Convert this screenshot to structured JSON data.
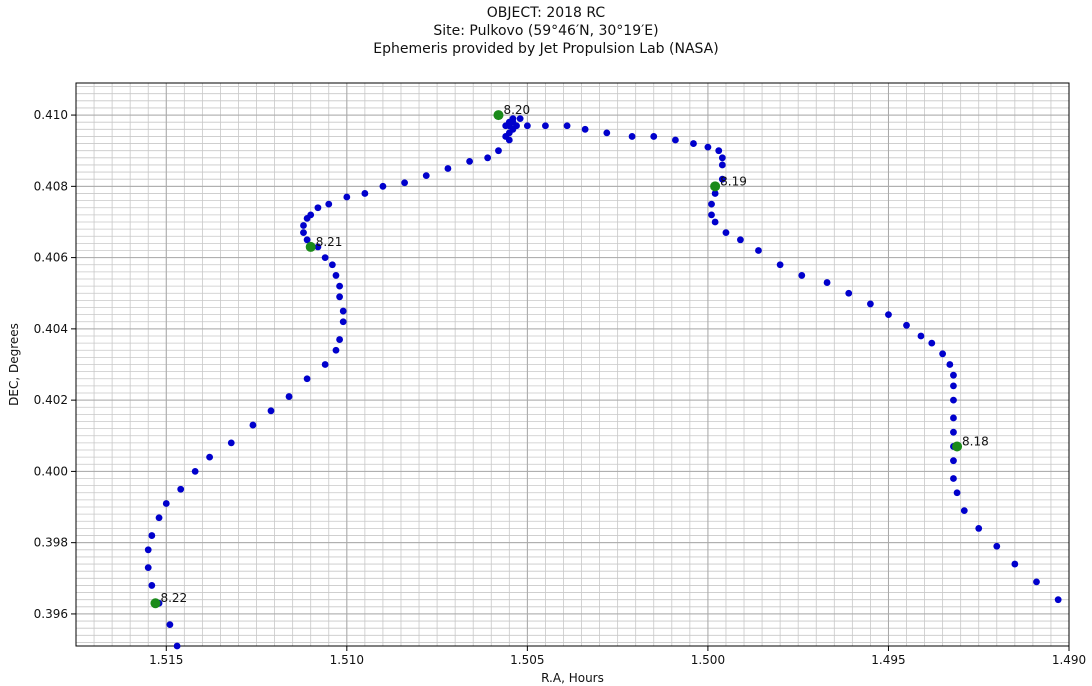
{
  "chart_data": {
    "type": "scatter",
    "title_lines": [
      "OBJECT: 2018 RC",
      "Site: Pulkovo (59°46′N,  30°19′E)",
      "Ephemeris provided by Jet Propulsion Lab (NASA)"
    ],
    "xlabel": "R.A, Hours",
    "ylabel": "DEC, Degrees",
    "xlim": [
      1.5175,
      1.49
    ],
    "ylim": [
      0.3951,
      0.4109
    ],
    "x_reversed": true,
    "grid": true,
    "x_ticks": [
      1.515,
      1.51,
      1.505,
      1.5,
      1.495,
      1.49
    ],
    "x_tick_labels": [
      "1.515",
      "1.510",
      "1.505",
      "1.500",
      "1.495",
      "1.490"
    ],
    "y_ticks": [
      0.396,
      0.398,
      0.4,
      0.402,
      0.404,
      0.406,
      0.408,
      0.41
    ],
    "y_tick_labels": [
      "0.396",
      "0.398",
      "0.400",
      "0.402",
      "0.404",
      "0.406",
      "0.408",
      "0.410"
    ],
    "series": [
      {
        "color": "#0000cc",
        "marker": "circle",
        "points": [
          [
            1.4903,
            0.3964
          ],
          [
            1.4909,
            0.3969
          ],
          [
            1.4915,
            0.3974
          ],
          [
            1.492,
            0.3979
          ],
          [
            1.4925,
            0.3984
          ],
          [
            1.4929,
            0.3989
          ],
          [
            1.4931,
            0.3994
          ],
          [
            1.4932,
            0.3998
          ],
          [
            1.4932,
            0.4003
          ],
          [
            1.4932,
            0.4007
          ],
          [
            1.4932,
            0.4011
          ],
          [
            1.4932,
            0.4015
          ],
          [
            1.4932,
            0.402
          ],
          [
            1.4932,
            0.4024
          ],
          [
            1.4932,
            0.4027
          ],
          [
            1.4933,
            0.403
          ],
          [
            1.4935,
            0.4033
          ],
          [
            1.4938,
            0.4036
          ],
          [
            1.4941,
            0.4038
          ],
          [
            1.4945,
            0.4041
          ],
          [
            1.495,
            0.4044
          ],
          [
            1.4955,
            0.4047
          ],
          [
            1.4961,
            0.405
          ],
          [
            1.4967,
            0.4053
          ],
          [
            1.4974,
            0.4055
          ],
          [
            1.498,
            0.4058
          ],
          [
            1.4986,
            0.4062
          ],
          [
            1.4991,
            0.4065
          ],
          [
            1.4995,
            0.4067
          ],
          [
            1.4998,
            0.407
          ],
          [
            1.4999,
            0.4072
          ],
          [
            1.4999,
            0.4075
          ],
          [
            1.4998,
            0.4078
          ],
          [
            1.4996,
            0.4082
          ],
          [
            1.4996,
            0.4086
          ],
          [
            1.4996,
            0.4088
          ],
          [
            1.4997,
            0.409
          ],
          [
            1.5,
            0.4091
          ],
          [
            1.5004,
            0.4092
          ],
          [
            1.5009,
            0.4093
          ],
          [
            1.5015,
            0.4094
          ],
          [
            1.5021,
            0.4094
          ],
          [
            1.5028,
            0.4095
          ],
          [
            1.5034,
            0.4096
          ],
          [
            1.5039,
            0.4097
          ],
          [
            1.5045,
            0.4097
          ],
          [
            1.505,
            0.4097
          ],
          [
            1.5053,
            0.4097
          ],
          [
            1.5054,
            0.4096
          ],
          [
            1.5055,
            0.4095
          ],
          [
            1.5056,
            0.4094
          ],
          [
            1.5056,
            0.4097
          ],
          [
            1.5055,
            0.4098
          ],
          [
            1.5054,
            0.4099
          ],
          [
            1.5052,
            0.4099
          ],
          [
            1.5054,
            0.4098
          ],
          [
            1.5055,
            0.4097
          ],
          [
            1.5055,
            0.4093
          ],
          [
            1.5058,
            0.409
          ],
          [
            1.5061,
            0.4088
          ],
          [
            1.5066,
            0.4087
          ],
          [
            1.5072,
            0.4085
          ],
          [
            1.5078,
            0.4083
          ],
          [
            1.5084,
            0.4081
          ],
          [
            1.509,
            0.408
          ],
          [
            1.5095,
            0.4078
          ],
          [
            1.51,
            0.4077
          ],
          [
            1.5105,
            0.4075
          ],
          [
            1.5108,
            0.4074
          ],
          [
            1.511,
            0.4072
          ],
          [
            1.5111,
            0.4071
          ],
          [
            1.5112,
            0.4069
          ],
          [
            1.5112,
            0.4067
          ],
          [
            1.5111,
            0.4065
          ],
          [
            1.5108,
            0.4063
          ],
          [
            1.5106,
            0.406
          ],
          [
            1.5104,
            0.4058
          ],
          [
            1.5103,
            0.4055
          ],
          [
            1.5102,
            0.4052
          ],
          [
            1.5102,
            0.4049
          ],
          [
            1.5101,
            0.4045
          ],
          [
            1.5101,
            0.4042
          ],
          [
            1.5102,
            0.4037
          ],
          [
            1.5103,
            0.4034
          ],
          [
            1.5106,
            0.403
          ],
          [
            1.5111,
            0.4026
          ],
          [
            1.5116,
            0.4021
          ],
          [
            1.5121,
            0.4017
          ],
          [
            1.5126,
            0.4013
          ],
          [
            1.5132,
            0.4008
          ],
          [
            1.5138,
            0.4004
          ],
          [
            1.5142,
            0.4
          ],
          [
            1.5146,
            0.3995
          ],
          [
            1.515,
            0.3991
          ],
          [
            1.5152,
            0.3987
          ],
          [
            1.5154,
            0.3982
          ],
          [
            1.5155,
            0.3978
          ],
          [
            1.5155,
            0.3973
          ],
          [
            1.5154,
            0.3968
          ],
          [
            1.5152,
            0.3963
          ],
          [
            1.5149,
            0.3957
          ],
          [
            1.5147,
            0.3951
          ]
        ]
      },
      {
        "color": "#1a8a1a",
        "marker": "circle",
        "points": [
          [
            1.4931,
            0.4007
          ],
          [
            1.4998,
            0.408
          ],
          [
            1.5058,
            0.41
          ],
          [
            1.511,
            0.4063
          ],
          [
            1.5153,
            0.3963
          ]
        ]
      }
    ],
    "annotations": [
      {
        "x": 1.4931,
        "y": 0.4007,
        "text": "8.18"
      },
      {
        "x": 1.4998,
        "y": 0.408,
        "text": "8.19"
      },
      {
        "x": 1.5058,
        "y": 0.41,
        "text": "8.20"
      },
      {
        "x": 1.511,
        "y": 0.4063,
        "text": "8.21"
      },
      {
        "x": 1.5153,
        "y": 0.3963,
        "text": "8.22"
      }
    ]
  }
}
